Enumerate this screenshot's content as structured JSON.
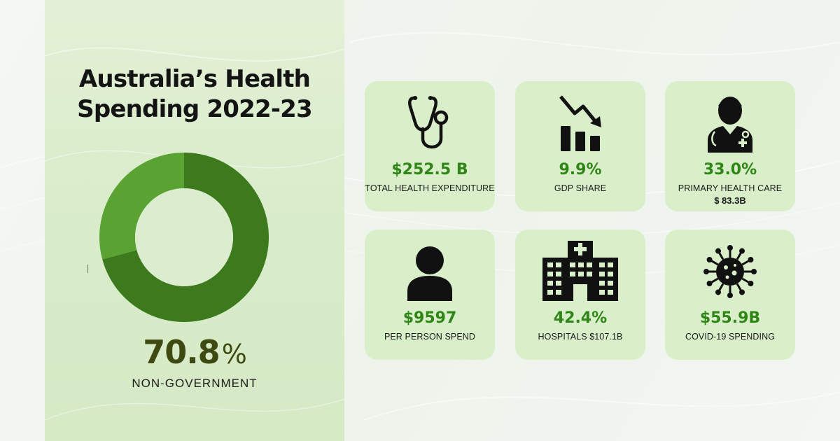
{
  "title": {
    "line1": "Australia’s Health",
    "line2": "Spending 2022-23"
  },
  "chart_data": {
    "type": "pie",
    "slices": [
      {
        "name": "Non-government",
        "value": 70.8,
        "color": "#3c7a1d"
      },
      {
        "name": "",
        "value": 29.2,
        "color": "#5aa332"
      }
    ],
    "donut": true,
    "highlight_value": "70.8",
    "highlight_unit": "%",
    "highlight_label": "NON-GOVERNMENT"
  },
  "colors": {
    "accent": "#2f8616",
    "card_bg": "#d8efc9",
    "panel_bg": "#d9ecca",
    "dark_slice": "#3c7a1d",
    "light_slice": "#5aa332"
  },
  "cards": [
    {
      "icon": "stethoscope-icon",
      "value": "$252.5 B",
      "label": "TOTAL HEALTH EXPENDITURE",
      "sub": ""
    },
    {
      "icon": "chart-down-icon",
      "value": "9.9%",
      "label": "GDP SHARE",
      "sub": ""
    },
    {
      "icon": "doctor-icon",
      "value": "33.0%",
      "label": "PRIMARY HEALTH CARE",
      "sub": "$ 83.3B"
    },
    {
      "icon": "person-icon",
      "value": "$9597",
      "label": "PER PERSON SPEND",
      "sub": ""
    },
    {
      "icon": "hospital-icon",
      "value": "42.4%",
      "label": "HOSPITALS $107.1B",
      "sub": ""
    },
    {
      "icon": "virus-icon",
      "value": "$55.9B",
      "label": "COVID-19 SPENDING",
      "sub": ""
    }
  ]
}
